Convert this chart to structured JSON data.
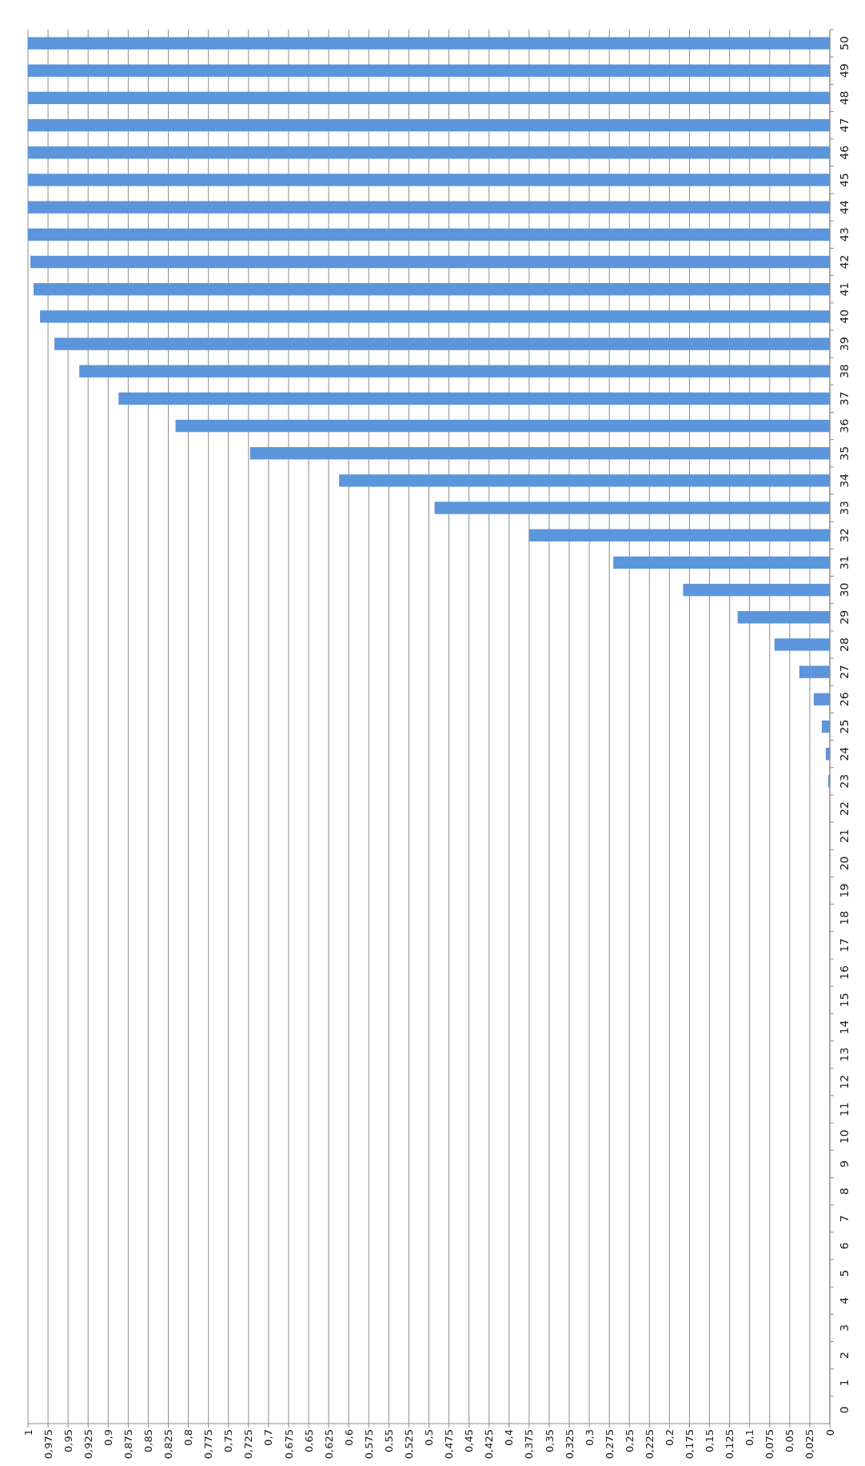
{
  "chart_data": {
    "type": "bar",
    "orientation": "horizontal",
    "categories": [
      "50",
      "49",
      "48",
      "47",
      "46",
      "45",
      "44",
      "43",
      "42",
      "41",
      "40",
      "39",
      "38",
      "37",
      "36",
      "35",
      "34",
      "33",
      "32",
      "31",
      "30",
      "29",
      "28",
      "27",
      "26",
      "25",
      "24",
      "23",
      "22",
      "21",
      "20",
      "19",
      "18",
      "17",
      "16",
      "15",
      "14",
      "13",
      "12",
      "11",
      "10",
      "9",
      "8",
      "7",
      "6",
      "5",
      "4",
      "3",
      "2",
      "1",
      "0"
    ],
    "values": [
      1,
      1,
      1,
      1,
      1,
      1,
      1,
      1,
      0.997,
      0.993,
      0.985,
      0.967,
      0.936,
      0.887,
      0.816,
      0.723,
      0.612,
      0.493,
      0.375,
      0.27,
      0.183,
      0.115,
      0.069,
      0.038,
      0.02,
      0.01,
      0.005,
      0.002,
      0,
      0,
      0,
      0,
      0,
      0,
      0,
      0,
      0,
      0,
      0,
      0,
      0,
      0,
      0,
      0,
      0,
      0,
      0,
      0,
      0,
      0,
      0
    ],
    "color": "#5b95dc",
    "xlim": [
      1,
      0
    ],
    "grid": "x",
    "xticks": [
      1,
      {
        "value": 0.975,
        "label": "0,975"
      },
      {
        "value": 0.95,
        "label": "0,95"
      },
      {
        "value": 0.925,
        "label": "0,925"
      },
      {
        "value": 0.9,
        "label": "0,9"
      },
      {
        "value": 0.875,
        "label": "0,875"
      },
      {
        "value": 0.85,
        "label": "0,85"
      },
      {
        "value": 0.825,
        "label": "0,825"
      },
      {
        "value": 0.8,
        "label": "0,8"
      },
      {
        "value": 0.775,
        "label": "0,775"
      },
      {
        "value": 0.75,
        "label": "0,75"
      },
      {
        "value": 0.725,
        "label": "0,725"
      },
      {
        "value": 0.7,
        "label": "0,7"
      },
      {
        "value": 0.675,
        "label": "0,675"
      },
      {
        "value": 0.65,
        "label": "0,65"
      },
      {
        "value": 0.625,
        "label": "0,625"
      },
      {
        "value": 0.6,
        "label": "0,6"
      },
      {
        "value": 0.575,
        "label": "0,575"
      },
      {
        "value": 0.55,
        "label": "0,55"
      },
      {
        "value": 0.525,
        "label": "0,525"
      },
      {
        "value": 0.5,
        "label": "0,5"
      },
      {
        "value": 0.475,
        "label": "0,475"
      },
      {
        "value": 0.45,
        "label": "0,45"
      },
      {
        "value": 0.425,
        "label": "0,425"
      },
      {
        "value": 0.4,
        "label": "0,4"
      },
      {
        "value": 0.375,
        "label": "0,375"
      },
      {
        "value": 0.35,
        "label": "0,35"
      },
      {
        "value": 0.325,
        "label": "0,325"
      },
      {
        "value": 0.3,
        "label": "0,3"
      },
      {
        "value": 0.275,
        "label": "0,275"
      },
      {
        "value": 0.25,
        "label": "0,25"
      },
      {
        "value": 0.225,
        "label": "0,225"
      },
      {
        "value": 0.2,
        "label": "0,2"
      },
      {
        "value": 0.175,
        "label": "0,175"
      },
      {
        "value": 0.15,
        "label": "0,15"
      },
      {
        "value": 0.125,
        "label": "0,125"
      },
      {
        "value": 0.1,
        "label": "0,1"
      },
      {
        "value": 0.075,
        "label": "0,075"
      },
      {
        "value": 0.05,
        "label": "0,05"
      },
      {
        "value": 0.025,
        "label": "0,025"
      },
      0
    ]
  }
}
